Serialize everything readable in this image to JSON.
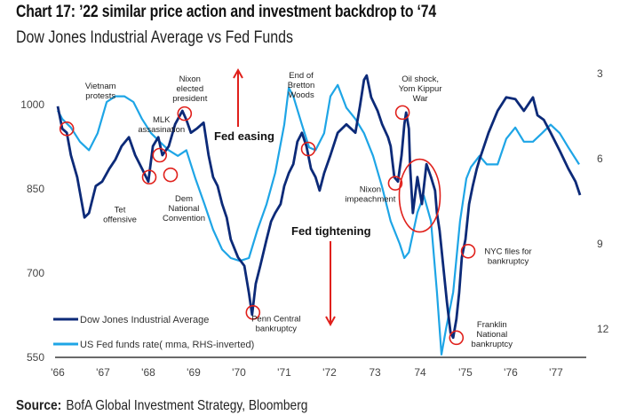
{
  "title": "Chart 17: ’22 similar price action and investment backdrop to ‘74",
  "subtitle": "Dow Jones Industrial Average vs Fed Funds",
  "source_label": "Source:",
  "source_text": "BofA Global Investment Strategy, Bloomberg",
  "colors": {
    "djia": "#0c2a78",
    "fed": "#1ea5e6",
    "annotation": "#e0201b"
  },
  "chart_data": {
    "type": "line",
    "title": "Chart 17: ’22 similar price action and investment backdrop to ‘74",
    "subtitle": "Dow Jones Industrial Average vs Fed Funds",
    "grid": false,
    "legend_placement": "bottom-left",
    "x_range": [
      1966,
      1978
    ],
    "x_ticks": [
      "'66",
      "'67",
      "'68",
      "'69",
      "'70",
      "'71",
      "'72",
      "73",
      "74",
      "'75",
      "'76",
      "'77"
    ],
    "y_left": {
      "range": [
        550,
        1060
      ],
      "ticks": [
        "550",
        "700",
        "850",
        "1000"
      ],
      "tick_values": [
        550,
        700,
        850,
        1000
      ]
    },
    "y_right": {
      "range": [
        2.8,
        13.0
      ],
      "inverted": true,
      "ticks": [
        "3",
        "6",
        "9",
        "12"
      ],
      "tick_values": [
        3,
        6,
        9,
        12
      ]
    },
    "series": [
      {
        "name": "Dow Jones Industrial Average",
        "axis": "left",
        "x": [
          1966.0,
          1966.1,
          1966.2,
          1966.29,
          1966.43,
          1966.59,
          1966.69,
          1966.84,
          1966.98,
          1967.14,
          1967.27,
          1967.41,
          1967.57,
          1967.71,
          1967.86,
          1968.0,
          1968.1,
          1968.22,
          1968.31,
          1968.45,
          1968.59,
          1968.75,
          1968.84,
          1968.94,
          1969.08,
          1969.22,
          1969.33,
          1969.43,
          1969.53,
          1969.63,
          1969.73,
          1969.82,
          1969.98,
          1970.12,
          1970.22,
          1970.29,
          1970.37,
          1970.47,
          1970.61,
          1970.71,
          1970.8,
          1970.92,
          1971.0,
          1971.1,
          1971.2,
          1971.29,
          1971.39,
          1971.49,
          1971.59,
          1971.69,
          1971.78,
          1971.88,
          1972.02,
          1972.18,
          1972.37,
          1972.57,
          1972.67,
          1972.76,
          1972.82,
          1972.92,
          1973.06,
          1973.16,
          1973.29,
          1973.35,
          1973.43,
          1973.51,
          1973.59,
          1973.65,
          1973.69,
          1973.75,
          1973.78,
          1973.84,
          1973.94,
          1974.04,
          1974.14,
          1974.24,
          1974.33,
          1974.37,
          1974.43,
          1974.53,
          1974.59,
          1974.67,
          1974.73,
          1974.8,
          1974.86,
          1974.92,
          1975.0,
          1975.08,
          1975.16,
          1975.25,
          1975.31,
          1975.41,
          1975.51,
          1975.71,
          1975.9,
          1976.1,
          1976.29,
          1976.49,
          1976.59,
          1976.73,
          1976.88,
          1977.08,
          1977.27,
          1977.43,
          1977.53
        ],
        "values": [
          997,
          957,
          950,
          910,
          871,
          799,
          807,
          855,
          863,
          886,
          902,
          926,
          942,
          910,
          886,
          863,
          926,
          942,
          910,
          926,
          965,
          989,
          973,
          950,
          958,
          968,
          910,
          871,
          855,
          823,
          799,
          760,
          728,
          713,
          665,
          626,
          681,
          713,
          760,
          792,
          807,
          823,
          855,
          878,
          894,
          934,
          950,
          926,
          886,
          871,
          847,
          878,
          910,
          950,
          965,
          950,
          997,
          1044,
          1052,
          1013,
          989,
          965,
          942,
          926,
          871,
          863,
          910,
          965,
          986,
          957,
          886,
          807,
          871,
          823,
          894,
          871,
          847,
          807,
          776,
          697,
          649,
          594,
          585,
          618,
          665,
          728,
          760,
          823,
          855,
          886,
          902,
          926,
          950,
          989,
          1013,
          1010,
          989,
          1013,
          981,
          973,
          950,
          918,
          886,
          863,
          839
        ]
      },
      {
        "name": "US Fed funds rate( mma, RHS-inverted)",
        "axis": "right",
        "x": [
          1966.0,
          1966.1,
          1966.29,
          1966.49,
          1966.69,
          1966.88,
          1967.08,
          1967.27,
          1967.47,
          1967.67,
          1967.86,
          1968.06,
          1968.25,
          1968.45,
          1968.65,
          1968.84,
          1969.04,
          1969.24,
          1969.43,
          1969.63,
          1969.82,
          1970.02,
          1970.22,
          1970.41,
          1970.61,
          1970.8,
          1971.0,
          1971.1,
          1971.2,
          1971.39,
          1971.55,
          1971.69,
          1971.88,
          1972.02,
          1972.18,
          1972.37,
          1972.57,
          1972.76,
          1972.96,
          1973.16,
          1973.35,
          1973.55,
          1973.65,
          1973.75,
          1973.94,
          1974.08,
          1974.24,
          1974.37,
          1974.47,
          1974.57,
          1974.73,
          1974.88,
          1975.02,
          1975.12,
          1975.31,
          1975.47,
          1975.71,
          1975.9,
          1976.1,
          1976.29,
          1976.49,
          1976.69,
          1976.88,
          1977.08,
          1977.27,
          1977.51
        ],
        "values": [
          4.3,
          4.6,
          4.9,
          5.4,
          5.7,
          5.1,
          4.0,
          3.8,
          3.8,
          4.0,
          4.6,
          5.1,
          5.4,
          5.7,
          5.9,
          5.7,
          6.7,
          7.6,
          8.5,
          9.2,
          9.5,
          9.6,
          9.5,
          8.5,
          7.6,
          6.5,
          4.8,
          3.5,
          3.8,
          4.8,
          5.6,
          5.7,
          5.1,
          3.8,
          3.4,
          4.2,
          4.6,
          5.1,
          5.9,
          7.0,
          8.2,
          9.0,
          9.5,
          9.3,
          7.9,
          7.3,
          8.2,
          10.7,
          12.9,
          12.0,
          10.7,
          8.2,
          6.7,
          6.3,
          5.9,
          6.2,
          6.2,
          5.3,
          4.9,
          5.4,
          5.4,
          5.1,
          4.8,
          5.1,
          5.6,
          6.2
        ]
      }
    ],
    "annotations": [
      {
        "label": [
          "Vietnam",
          "protests"
        ],
        "x": 1966.2,
        "y": 957
      },
      {
        "label": [
          "MLK",
          "assasination"
        ],
        "x": 1968.25,
        "y": 910
      },
      {
        "label": [
          "Tet",
          "offensive"
        ],
        "x": 1968.02,
        "y": 871
      },
      {
        "label": [
          "Nixon",
          "elected",
          "president"
        ],
        "x": 1968.8,
        "y": 984
      },
      {
        "label": [
          "Dem",
          "National",
          "Convention"
        ],
        "x": 1968.49,
        "y": 875
      },
      {
        "label": [
          "Penn Central",
          "bankruptcy"
        ],
        "x": 1970.31,
        "y": 630
      },
      {
        "label": [
          "End of",
          "Bretton",
          "Woods"
        ],
        "x": 1971.53,
        "y": 921
      },
      {
        "label": [
          "Nixon",
          "impeachment"
        ],
        "x": 1973.45,
        "y": 860
      },
      {
        "label": [
          "Oil shock,",
          "Yom Kippur",
          "War"
        ],
        "x": 1973.61,
        "y": 986
      },
      {
        "label": [
          "NYC files for",
          "bankruptcy"
        ],
        "x": 1975.06,
        "y": 739
      },
      {
        "label": [
          "Franklin",
          "National",
          "bankruptcy"
        ],
        "x": 1974.8,
        "y": 585
      }
    ],
    "highlight_region": {
      "x": 1973.99,
      "y": 838
    },
    "arrows": [
      {
        "label": "Fed easing",
        "direction": "up"
      },
      {
        "label": "Fed tightening",
        "direction": "down"
      }
    ]
  }
}
